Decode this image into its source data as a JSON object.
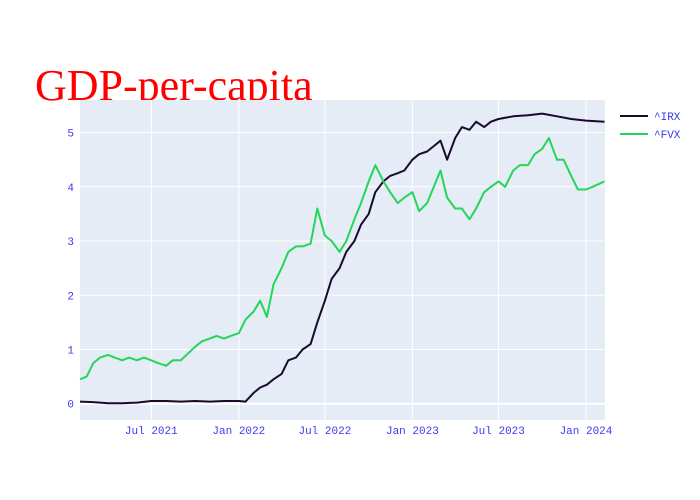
{
  "chart_data": {
    "type": "line",
    "title": "GDP-per-capita",
    "xlabel": "",
    "ylabel": "",
    "x_range": [
      "2021-02-01",
      "2024-02-10"
    ],
    "ylim": [
      -0.3,
      5.6
    ],
    "x_ticks": [
      {
        "date": "2021-07-01",
        "label": "Jul 2021"
      },
      {
        "date": "2022-01-01",
        "label": "Jan 2022"
      },
      {
        "date": "2022-07-01",
        "label": "Jul 2022"
      },
      {
        "date": "2023-01-01",
        "label": "Jan 2023"
      },
      {
        "date": "2023-07-01",
        "label": "Jul 2023"
      },
      {
        "date": "2024-01-01",
        "label": "Jan 2024"
      }
    ],
    "y_ticks": [
      0,
      1,
      2,
      3,
      4,
      5
    ],
    "grid": true,
    "legend_position": "top-right",
    "plot_background": "#e5ecf6",
    "series": [
      {
        "name": "^IRX",
        "color": "#1a0a2e",
        "points": [
          [
            "2021-02-01",
            0.04
          ],
          [
            "2021-03-01",
            0.03
          ],
          [
            "2021-04-01",
            0.01
          ],
          [
            "2021-05-01",
            0.01
          ],
          [
            "2021-06-01",
            0.02
          ],
          [
            "2021-07-01",
            0.05
          ],
          [
            "2021-08-01",
            0.05
          ],
          [
            "2021-09-01",
            0.04
          ],
          [
            "2021-10-01",
            0.05
          ],
          [
            "2021-11-01",
            0.04
          ],
          [
            "2021-12-01",
            0.05
          ],
          [
            "2022-01-01",
            0.05
          ],
          [
            "2022-01-15",
            0.04
          ],
          [
            "2022-02-01",
            0.2
          ],
          [
            "2022-02-15",
            0.3
          ],
          [
            "2022-03-01",
            0.35
          ],
          [
            "2022-03-15",
            0.45
          ],
          [
            "2022-04-01",
            0.55
          ],
          [
            "2022-04-15",
            0.8
          ],
          [
            "2022-05-01",
            0.85
          ],
          [
            "2022-05-15",
            1.0
          ],
          [
            "2022-06-01",
            1.1
          ],
          [
            "2022-06-15",
            1.5
          ],
          [
            "2022-07-01",
            1.9
          ],
          [
            "2022-07-15",
            2.3
          ],
          [
            "2022-08-01",
            2.5
          ],
          [
            "2022-08-15",
            2.8
          ],
          [
            "2022-09-01",
            3.0
          ],
          [
            "2022-09-15",
            3.3
          ],
          [
            "2022-10-01",
            3.5
          ],
          [
            "2022-10-15",
            3.9
          ],
          [
            "2022-11-01",
            4.1
          ],
          [
            "2022-11-15",
            4.2
          ],
          [
            "2022-12-01",
            4.25
          ],
          [
            "2022-12-15",
            4.3
          ],
          [
            "2023-01-01",
            4.5
          ],
          [
            "2023-01-15",
            4.6
          ],
          [
            "2023-02-01",
            4.65
          ],
          [
            "2023-02-15",
            4.75
          ],
          [
            "2023-03-01",
            4.85
          ],
          [
            "2023-03-15",
            4.5
          ],
          [
            "2023-04-01",
            4.9
          ],
          [
            "2023-04-15",
            5.1
          ],
          [
            "2023-05-01",
            5.05
          ],
          [
            "2023-05-15",
            5.2
          ],
          [
            "2023-06-01",
            5.1
          ],
          [
            "2023-06-15",
            5.2
          ],
          [
            "2023-07-01",
            5.25
          ],
          [
            "2023-08-01",
            5.3
          ],
          [
            "2023-09-01",
            5.32
          ],
          [
            "2023-10-01",
            5.35
          ],
          [
            "2023-11-01",
            5.3
          ],
          [
            "2023-12-01",
            5.25
          ],
          [
            "2024-01-01",
            5.22
          ],
          [
            "2024-02-09",
            5.2
          ]
        ]
      },
      {
        "name": "^FVX",
        "color": "#22d65a",
        "points": [
          [
            "2021-02-01",
            0.45
          ],
          [
            "2021-02-15",
            0.5
          ],
          [
            "2021-03-01",
            0.75
          ],
          [
            "2021-03-15",
            0.85
          ],
          [
            "2021-04-01",
            0.9
          ],
          [
            "2021-04-15",
            0.85
          ],
          [
            "2021-05-01",
            0.8
          ],
          [
            "2021-05-15",
            0.85
          ],
          [
            "2021-06-01",
            0.8
          ],
          [
            "2021-06-15",
            0.85
          ],
          [
            "2021-07-01",
            0.8
          ],
          [
            "2021-07-15",
            0.75
          ],
          [
            "2021-08-01",
            0.7
          ],
          [
            "2021-08-15",
            0.8
          ],
          [
            "2021-09-01",
            0.8
          ],
          [
            "2021-10-01",
            1.05
          ],
          [
            "2021-10-15",
            1.15
          ],
          [
            "2021-11-01",
            1.2
          ],
          [
            "2021-11-15",
            1.25
          ],
          [
            "2021-12-01",
            1.2
          ],
          [
            "2021-12-15",
            1.25
          ],
          [
            "2022-01-01",
            1.3
          ],
          [
            "2022-01-15",
            1.55
          ],
          [
            "2022-02-01",
            1.7
          ],
          [
            "2022-02-15",
            1.9
          ],
          [
            "2022-03-01",
            1.6
          ],
          [
            "2022-03-15",
            2.2
          ],
          [
            "2022-04-01",
            2.5
          ],
          [
            "2022-04-15",
            2.8
          ],
          [
            "2022-05-01",
            2.9
          ],
          [
            "2022-05-15",
            2.9
          ],
          [
            "2022-06-01",
            2.95
          ],
          [
            "2022-06-15",
            3.6
          ],
          [
            "2022-07-01",
            3.1
          ],
          [
            "2022-07-15",
            3.0
          ],
          [
            "2022-08-01",
            2.8
          ],
          [
            "2022-08-15",
            3.0
          ],
          [
            "2022-09-01",
            3.4
          ],
          [
            "2022-09-15",
            3.7
          ],
          [
            "2022-10-01",
            4.1
          ],
          [
            "2022-10-15",
            4.4
          ],
          [
            "2022-11-01",
            4.1
          ],
          [
            "2022-11-15",
            3.9
          ],
          [
            "2022-12-01",
            3.7
          ],
          [
            "2022-12-15",
            3.8
          ],
          [
            "2023-01-01",
            3.9
          ],
          [
            "2023-01-15",
            3.55
          ],
          [
            "2023-02-01",
            3.7
          ],
          [
            "2023-02-15",
            4.0
          ],
          [
            "2023-03-01",
            4.3
          ],
          [
            "2023-03-15",
            3.8
          ],
          [
            "2023-04-01",
            3.6
          ],
          [
            "2023-04-15",
            3.6
          ],
          [
            "2023-05-01",
            3.4
          ],
          [
            "2023-05-15",
            3.6
          ],
          [
            "2023-06-01",
            3.9
          ],
          [
            "2023-06-15",
            4.0
          ],
          [
            "2023-07-01",
            4.1
          ],
          [
            "2023-07-15",
            4.0
          ],
          [
            "2023-08-01",
            4.3
          ],
          [
            "2023-08-15",
            4.4
          ],
          [
            "2023-09-01",
            4.4
          ],
          [
            "2023-09-15",
            4.6
          ],
          [
            "2023-10-01",
            4.7
          ],
          [
            "2023-10-15",
            4.9
          ],
          [
            "2023-11-01",
            4.5
          ],
          [
            "2023-11-15",
            4.5
          ],
          [
            "2023-12-01",
            4.2
          ],
          [
            "2023-12-15",
            3.95
          ],
          [
            "2024-01-01",
            3.95
          ],
          [
            "2024-01-15",
            4.0
          ],
          [
            "2024-02-09",
            4.1
          ]
        ]
      }
    ]
  }
}
